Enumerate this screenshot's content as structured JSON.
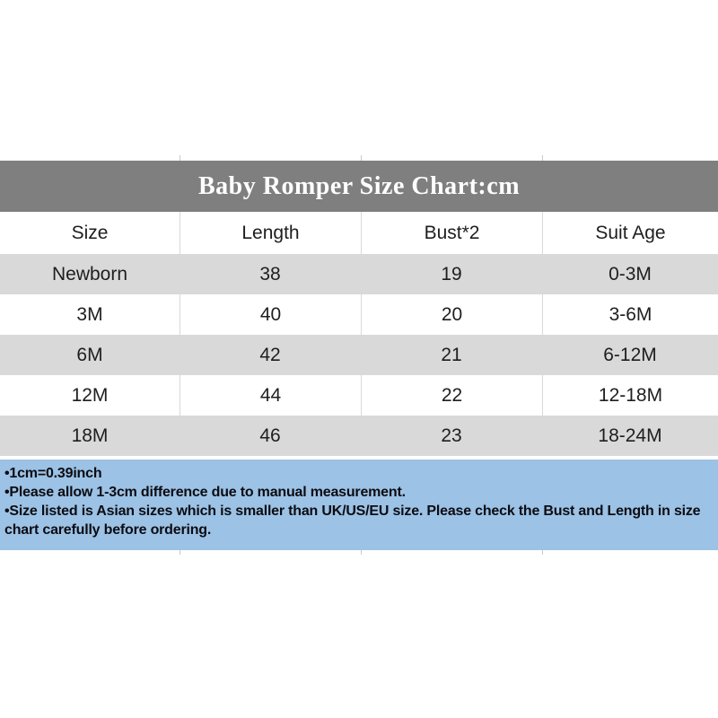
{
  "title_bar": {
    "text": "Baby Romper Size Chart:cm",
    "background": "#7f7f7f",
    "text_color": "#ffffff"
  },
  "table": {
    "columns": [
      "Size",
      "Length",
      "Bust*2",
      "Suit Age"
    ],
    "rows": [
      [
        "Newborn",
        "38",
        "19",
        "0-3M"
      ],
      [
        "3M",
        "40",
        "20",
        "3-6M"
      ],
      [
        "6M",
        "42",
        "21",
        "6-12M"
      ],
      [
        "12M",
        "44",
        "22",
        "12-18M"
      ],
      [
        "18M",
        "46",
        "23",
        "18-24M"
      ]
    ],
    "stripe_color": "#d9d9d9",
    "divider_color": "#d9d9d9"
  },
  "notes": {
    "background": "#9cc2e5",
    "bullet": "•",
    "items": [
      "1cm=0.39inch",
      "Please allow 1-3cm difference due to manual measurement.",
      "Size listed is Asian sizes which is smaller than UK/US/EU size. Please check the Bust and Length in size chart carefully before ordering."
    ]
  },
  "chart_data": {
    "type": "table",
    "title": "Baby Romper Size Chart:cm",
    "unit": "cm",
    "columns": [
      "Size",
      "Length",
      "Bust*2",
      "Suit Age"
    ],
    "rows": [
      [
        "Newborn",
        "38",
        "19",
        "0-3M"
      ],
      [
        "3M",
        "40",
        "20",
        "3-6M"
      ],
      [
        "6M",
        "42",
        "21",
        "6-12M"
      ],
      [
        "12M",
        "44",
        "22",
        "12-18M"
      ],
      [
        "18M",
        "46",
        "23",
        "18-24M"
      ]
    ],
    "footnotes": [
      "1cm=0.39inch",
      "Please allow 1-3cm difference due to manual measurement.",
      "Size listed is Asian sizes which is smaller than UK/US/EU size. Please check the Bust and Length in size chart carefully before ordering."
    ]
  }
}
